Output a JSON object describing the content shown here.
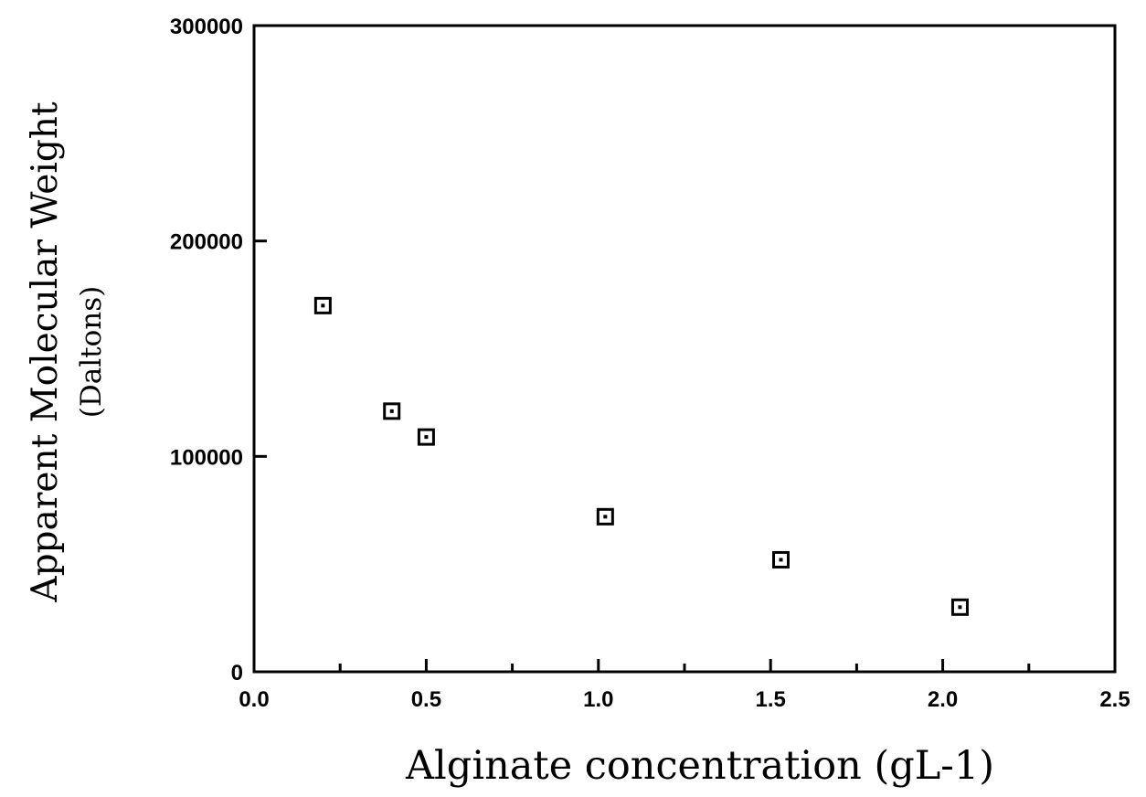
{
  "chart_data": {
    "type": "scatter",
    "title": "",
    "xlabel": "Alginate concentration (gL-1)",
    "ylabel_line1": "Apparent Molecular Weight",
    "ylabel_line2": "(Daltons)",
    "xlim": [
      0,
      2.5
    ],
    "ylim": [
      0,
      300000
    ],
    "x_ticks": [
      0,
      0.5,
      1.0,
      1.5,
      2.0,
      2.5
    ],
    "x_tick_labels": [
      "0.0",
      "0.5",
      "1.0",
      "1.5",
      "2.0",
      "2.5"
    ],
    "x_minor_ticks": [
      0.25,
      0.75,
      1.25,
      1.75,
      2.25
    ],
    "y_ticks": [
      0,
      100000,
      200000,
      300000
    ],
    "y_tick_labels": [
      "0",
      "100000",
      "200000",
      "300000"
    ],
    "grid": false,
    "legend": "none",
    "marker": "square-open",
    "series": [
      {
        "x": [
          0.2,
          0.4,
          0.5,
          1.02,
          1.53,
          2.05
        ],
        "y": [
          170000,
          121000,
          109000,
          72000,
          52000,
          30000
        ]
      }
    ]
  }
}
